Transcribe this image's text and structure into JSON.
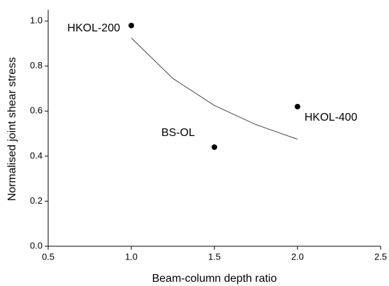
{
  "chart_data": {
    "type": "scatter",
    "xlabel": "Beam-column depth ratio",
    "ylabel": "Normalised joint shear stress",
    "xlim": [
      0.5,
      2.5
    ],
    "xticks": [
      0.5,
      {
        "value": 1,
        "label": "1.0"
      },
      1.5,
      {
        "value": 2,
        "label": "2.0"
      },
      2.5
    ],
    "ylim": [
      0,
      1.05
    ],
    "yticks": [
      {
        "value": 0,
        "label": "0.0"
      },
      0.2,
      0.4,
      0.6,
      0.8,
      {
        "value": 1,
        "label": "1.0"
      }
    ],
    "series": [
      {
        "kind": "points",
        "color": "#000000",
        "x": [
          1.0,
          1.5,
          2.0
        ],
        "values": [
          0.98,
          0.44,
          0.62
        ],
        "labels": [
          "HKOL-200",
          "BS-OL",
          "HKOL-400"
        ]
      },
      {
        "kind": "line",
        "color": "#444444",
        "x": [
          1.0,
          1.25,
          1.5,
          1.75,
          2.0
        ],
        "values": [
          0.925,
          0.745,
          0.625,
          0.54,
          0.475
        ]
      }
    ]
  }
}
